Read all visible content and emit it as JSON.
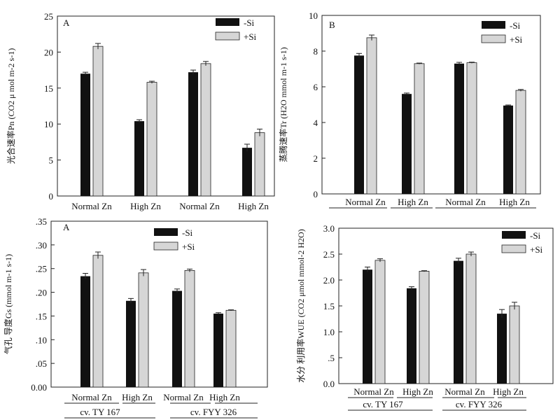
{
  "colors": {
    "minus_si": "#111111",
    "plus_si": "#d6d6d6",
    "axis": "#222222"
  },
  "chart_data": [
    {
      "type": "bar",
      "panel_label": "A",
      "ylabel": "光合速率Pn (CO2 μ mol m-2 s-1)",
      "ylim": [
        0,
        25
      ],
      "yticks": [
        "0",
        "5",
        "10",
        "15",
        "20",
        "25"
      ],
      "ytick_values": [
        0,
        5,
        10,
        15,
        20,
        25
      ],
      "categories": [
        "Normal Zn",
        "High Zn",
        "Normal Zn",
        "High Zn"
      ],
      "series": [
        {
          "name": "-Si",
          "values": [
            17.0,
            10.4,
            17.2,
            6.7
          ],
          "errors": [
            0.2,
            0.2,
            0.3,
            0.5
          ]
        },
        {
          "name": "+Si",
          "values": [
            20.8,
            15.8,
            18.4,
            8.8
          ],
          "errors": [
            0.4,
            0.15,
            0.3,
            0.5
          ]
        }
      ],
      "legend_position": "top-right"
    },
    {
      "type": "bar",
      "panel_label": "B",
      "ylabel": "蒸腾速率Tr (H2O mmol m-1 s-1)",
      "ylim": [
        0,
        10
      ],
      "yticks": [
        "0",
        "2",
        "4",
        "6",
        "8",
        "10"
      ],
      "ytick_values": [
        0,
        2,
        4,
        6,
        8,
        10
      ],
      "categories": [
        "Normal Zn",
        "High Zn",
        "Normal Zn",
        "High Zn"
      ],
      "series": [
        {
          "name": "-Si",
          "values": [
            7.75,
            5.6,
            7.3,
            4.95
          ],
          "errors": [
            0.12,
            0.05,
            0.07,
            0.03
          ]
        },
        {
          "name": "+Si",
          "values": [
            8.75,
            7.3,
            7.35,
            5.8
          ],
          "errors": [
            0.15,
            0.03,
            0.03,
            0.05
          ]
        }
      ],
      "legend_position": "top-right"
    },
    {
      "type": "bar",
      "panel_label": "A",
      "ylabel": "气孔 导度Gs (mmol m-1 s-1)",
      "ylim": [
        0,
        0.35
      ],
      "yticks": [
        "0.00",
        ".05",
        ".10",
        ".15",
        ".20",
        ".25",
        ".30",
        ".35"
      ],
      "ytick_values": [
        0,
        0.05,
        0.1,
        0.15,
        0.2,
        0.25,
        0.3,
        0.35
      ],
      "categories": [
        "Normal Zn",
        "High Zn",
        "Normal Zn",
        "High Zn"
      ],
      "series": [
        {
          "name": "-Si",
          "values": [
            0.234,
            0.182,
            0.203,
            0.155
          ],
          "errors": [
            0.006,
            0.005,
            0.004,
            0.002
          ]
        },
        {
          "name": "+Si",
          "values": [
            0.278,
            0.241,
            0.246,
            0.162
          ],
          "errors": [
            0.007,
            0.007,
            0.003,
            0.001
          ]
        }
      ],
      "cultivars": [
        "cv. TY 167",
        "cv. FYY 326"
      ],
      "legend_position": "top-right"
    },
    {
      "type": "bar",
      "ylabel": "水分 利用率WUE (CO2 μmol mmol-2 H2O)",
      "ylim": [
        0,
        3.0
      ],
      "yticks": [
        "0.0",
        ".5",
        "1.0",
        "1.5",
        "2.0",
        "2.5",
        "3.0"
      ],
      "ytick_values": [
        0,
        0.5,
        1.0,
        1.5,
        2.0,
        2.5,
        3.0
      ],
      "categories": [
        "Normal Zn",
        "High Zn",
        "Normal Zn",
        "High Zn"
      ],
      "series": [
        {
          "name": "-Si",
          "values": [
            2.2,
            1.84,
            2.37,
            1.35
          ],
          "errors": [
            0.05,
            0.03,
            0.05,
            0.08
          ]
        },
        {
          "name": "+Si",
          "values": [
            2.38,
            2.17,
            2.5,
            1.5
          ],
          "errors": [
            0.03,
            0.01,
            0.04,
            0.07
          ]
        }
      ],
      "cultivars": [
        "cv. TY 167",
        "cv. FYY 326"
      ],
      "legend_position": "top-right"
    }
  ]
}
